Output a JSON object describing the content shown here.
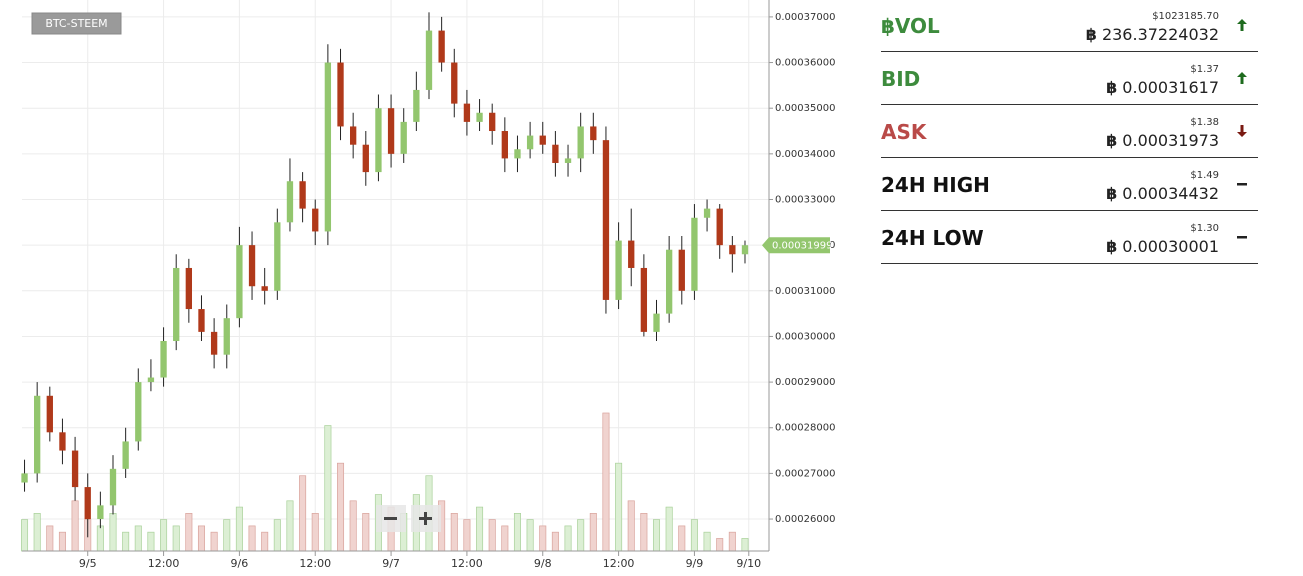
{
  "chart_data": {
    "type": "candlestick",
    "pair": "BTC-STEEM",
    "x": [
      -10,
      -8,
      -6,
      -4,
      -2,
      0,
      2,
      4,
      6,
      8,
      10,
      12,
      14,
      16,
      18,
      20,
      22,
      24,
      26,
      28,
      30,
      32,
      34,
      36,
      38,
      40,
      42,
      44,
      46,
      48,
      50,
      52,
      54,
      56,
      58,
      60,
      62,
      64,
      66,
      68,
      70,
      72,
      74,
      76,
      78,
      80,
      82,
      84,
      86,
      88,
      90,
      92,
      94,
      96,
      98,
      100,
      102,
      104
    ],
    "open": [
      0.000268,
      0.00027,
      0.000287,
      0.000279,
      0.000275,
      0.000267,
      0.00026,
      0.000263,
      0.000271,
      0.000277,
      0.00029,
      0.000291,
      0.000299,
      0.000315,
      0.000306,
      0.000301,
      0.000296,
      0.000304,
      0.00032,
      0.000311,
      0.00031,
      0.000325,
      0.000334,
      0.000328,
      0.000323,
      0.00036,
      0.000346,
      0.000342,
      0.000336,
      0.00035,
      0.00034,
      0.000347,
      0.000354,
      0.000367,
      0.00036,
      0.000351,
      0.000347,
      0.000349,
      0.000345,
      0.000339,
      0.000341,
      0.000344,
      0.000342,
      0.000338,
      0.000339,
      0.000346,
      0.000343,
      0.000308,
      0.000321,
      0.000315,
      0.000301,
      0.000305,
      0.000319,
      0.00031,
      0.000326,
      0.000328,
      0.00032,
      0.000318
    ],
    "high": [
      0.000273,
      0.00029,
      0.000289,
      0.000282,
      0.000278,
      0.00027,
      0.000266,
      0.000274,
      0.00028,
      0.000293,
      0.000295,
      0.000302,
      0.000318,
      0.000317,
      0.000309,
      0.000304,
      0.000307,
      0.000324,
      0.000323,
      0.000315,
      0.000328,
      0.000339,
      0.000336,
      0.00033,
      0.000364,
      0.000363,
      0.000349,
      0.000345,
      0.000353,
      0.000353,
      0.00035,
      0.000358,
      0.000371,
      0.00037,
      0.000363,
      0.000354,
      0.000352,
      0.000351,
      0.000348,
      0.000344,
      0.000347,
      0.000347,
      0.000345,
      0.000342,
      0.000349,
      0.000349,
      0.000346,
      0.000325,
      0.000328,
      0.000318,
      0.000308,
      0.000322,
      0.000322,
      0.000329,
      0.00033,
      0.000329,
      0.000322,
      0.000321
    ],
    "low": [
      0.000266,
      0.000268,
      0.000277,
      0.000272,
      0.000264,
      0.000256,
      0.000258,
      0.000261,
      0.000269,
      0.000275,
      0.000288,
      0.000289,
      0.000297,
      0.000303,
      0.000299,
      0.000293,
      0.000293,
      0.000302,
      0.000308,
      0.000307,
      0.000308,
      0.000323,
      0.000325,
      0.00032,
      0.00032,
      0.000343,
      0.000339,
      0.000333,
      0.000334,
      0.000337,
      0.000338,
      0.000345,
      0.000352,
      0.000358,
      0.000348,
      0.000344,
      0.000345,
      0.000342,
      0.000336,
      0.000336,
      0.000339,
      0.00034,
      0.000335,
      0.000335,
      0.000336,
      0.00034,
      0.000305,
      0.000306,
      0.000311,
      0.0003,
      0.000299,
      0.000303,
      0.000307,
      0.000308,
      0.000323,
      0.000317,
      0.000314,
      0.000316
    ],
    "close": [
      0.00027,
      0.000287,
      0.000279,
      0.000275,
      0.000267,
      0.00026,
      0.000263,
      0.000271,
      0.000277,
      0.00029,
      0.000291,
      0.000299,
      0.000315,
      0.000306,
      0.000301,
      0.000296,
      0.000304,
      0.00032,
      0.000311,
      0.00031,
      0.000325,
      0.000334,
      0.000328,
      0.000323,
      0.00036,
      0.000346,
      0.000342,
      0.000336,
      0.00035,
      0.00034,
      0.000347,
      0.000354,
      0.000367,
      0.00036,
      0.000351,
      0.000347,
      0.000349,
      0.000345,
      0.000339,
      0.000341,
      0.000344,
      0.000342,
      0.000338,
      0.000339,
      0.000346,
      0.000343,
      0.000308,
      0.000321,
      0.000315,
      0.000301,
      0.000305,
      0.000319,
      0.00031,
      0.000326,
      0.000328,
      0.00032,
      0.000318,
      0.00031999
    ],
    "volume": [
      5,
      6,
      4,
      3,
      8,
      5,
      4,
      6,
      3,
      4,
      3,
      5,
      4,
      6,
      4,
      3,
      5,
      7,
      4,
      3,
      5,
      8,
      12,
      6,
      20,
      14,
      8,
      6,
      9,
      7,
      6,
      9,
      12,
      8,
      6,
      5,
      7,
      5,
      4,
      6,
      5,
      4,
      3,
      4,
      5,
      6,
      22,
      14,
      8,
      6,
      5,
      7,
      4,
      5,
      3,
      2,
      3,
      2
    ],
    "up_color": "#93c66e",
    "down_color": "#b0391a",
    "xlim": [
      -10.4,
      107.8
    ],
    "ylim": [
      0.000253,
      0.0003737
    ],
    "xticks": [
      {
        "value": 0,
        "label": "9/5"
      },
      {
        "value": 12,
        "label": "12:00"
      },
      {
        "value": 24,
        "label": "9/6"
      },
      {
        "value": 36,
        "label": "12:00"
      },
      {
        "value": 48,
        "label": "9/7"
      },
      {
        "value": 60,
        "label": "12:00"
      },
      {
        "value": 72,
        "label": "9/8"
      },
      {
        "value": 84,
        "label": "12:00"
      },
      {
        "value": 96,
        "label": "9/9"
      },
      {
        "value": 104.6,
        "label": "9/10"
      }
    ],
    "yticks": [
      {
        "value": 0.00026,
        "label": "0.00026000"
      },
      {
        "value": 0.00027,
        "label": "0.00027000"
      },
      {
        "value": 0.00028,
        "label": "0.00028000"
      },
      {
        "value": 0.00029,
        "label": "0.00029000"
      },
      {
        "value": 0.0003,
        "label": "0.00030000"
      },
      {
        "value": 0.00031,
        "label": "0.00031000"
      },
      {
        "value": 0.00032,
        "label": "0.00032000"
      },
      {
        "value": 0.00033,
        "label": "0.00033000"
      },
      {
        "value": 0.00034,
        "label": "0.00034000"
      },
      {
        "value": 0.00035,
        "label": "0.00035000"
      },
      {
        "value": 0.00036,
        "label": "0.00036000"
      },
      {
        "value": 0.00037,
        "label": "0.00037000"
      }
    ],
    "grid": true,
    "last_price": 0.00031999
  },
  "stats": {
    "currency": "฿",
    "rows": [
      {
        "label": "฿VOL",
        "color": "#3d8b3d",
        "usd": "$1023185.70",
        "btc": "236.37224032",
        "trend": "up"
      },
      {
        "label": "BID",
        "color": "#3d8b3d",
        "usd": "$1.37",
        "btc": "0.00031617",
        "trend": "up"
      },
      {
        "label": "ASK",
        "color": "#b94a48",
        "usd": "$1.38",
        "btc": "0.00031973",
        "trend": "down"
      },
      {
        "label": "24H HIGH",
        "color": "#111111",
        "usd": "$1.49",
        "btc": "0.00034432",
        "trend": "flat"
      },
      {
        "label": "24H LOW",
        "color": "#111111",
        "usd": "$1.30",
        "btc": "0.00030001",
        "trend": "flat"
      }
    ]
  }
}
